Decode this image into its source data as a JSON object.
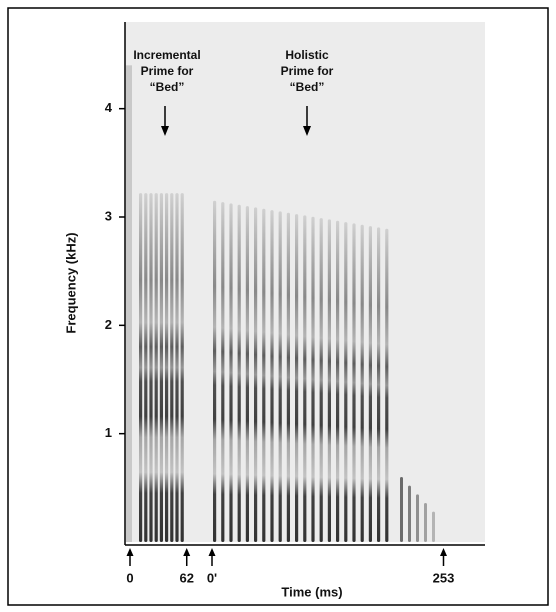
{
  "chart_data": {
    "type": "spectrogram",
    "ylabel": "Frequency (kHz)",
    "xlabel": "Time (ms)",
    "ylim": [
      0,
      4.8
    ],
    "yticks": [
      1,
      2,
      3,
      4
    ],
    "segments": [
      {
        "annotation": [
          "Incremental",
          "Prime for",
          "“Bed”"
        ],
        "xticks": [
          0,
          62
        ]
      },
      {
        "annotation": [
          "Holistic",
          "Prime for",
          "“Bed”"
        ],
        "xticks": [
          {
            "value": 0,
            "label": "0'"
          },
          253
        ]
      }
    ]
  }
}
